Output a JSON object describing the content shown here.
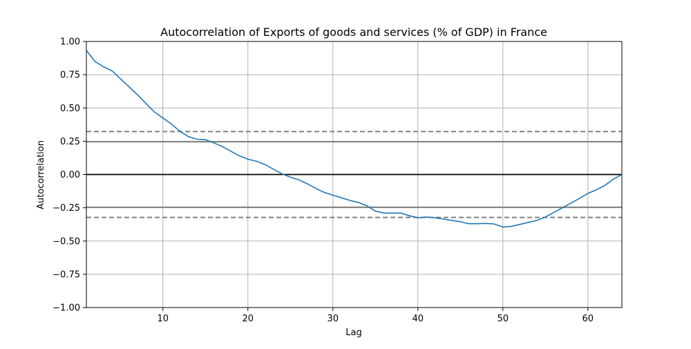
{
  "chart_data": {
    "type": "line",
    "title": "Autocorrelation of Exports of goods and services (% of GDP) in France",
    "xlabel": "Lag",
    "ylabel": "Autocorrelation",
    "xlim": [
      1,
      64
    ],
    "ylim": [
      -1.0,
      1.0
    ],
    "xticks": [
      10,
      20,
      30,
      40,
      50,
      60
    ],
    "xtick_labels": [
      "10",
      "20",
      "30",
      "40",
      "50",
      "60"
    ],
    "yticks": [
      -1.0,
      -0.75,
      -0.5,
      -0.25,
      0.0,
      0.25,
      0.5,
      0.75,
      1.0
    ],
    "ytick_labels": [
      "−1.00",
      "−0.75",
      "−0.50",
      "−0.25",
      "0.00",
      "0.25",
      "0.50",
      "0.75",
      "1.00"
    ],
    "grid": true,
    "confidence_lines": {
      "solid": [
        0.246,
        -0.246
      ],
      "dashed": [
        0.323,
        -0.323
      ]
    },
    "colors": {
      "series": "#1f77b4",
      "confidence": "#808080",
      "grid": "#b0b0b0",
      "zero_line": "#000000"
    },
    "series": [
      {
        "x": [
          1,
          2,
          3,
          4,
          5,
          6,
          7,
          8,
          9,
          10,
          11,
          12,
          13,
          14,
          15,
          16,
          17,
          18,
          19,
          20,
          21,
          22,
          23,
          24,
          25,
          26,
          27,
          28,
          29,
          30,
          31,
          32,
          33,
          34,
          35,
          36,
          37,
          38,
          39,
          40,
          41,
          42,
          43,
          44,
          45,
          46,
          47,
          48,
          49,
          50,
          51,
          52,
          53,
          54,
          55,
          56,
          57,
          58,
          59,
          60,
          61,
          62,
          63,
          64
        ],
        "values": [
          0.933,
          0.85,
          0.81,
          0.78,
          0.72,
          0.66,
          0.6,
          0.535,
          0.47,
          0.425,
          0.38,
          0.325,
          0.285,
          0.265,
          0.262,
          0.238,
          0.21,
          0.175,
          0.14,
          0.115,
          0.1,
          0.075,
          0.04,
          0.005,
          -0.02,
          -0.04,
          -0.07,
          -0.105,
          -0.135,
          -0.155,
          -0.175,
          -0.195,
          -0.21,
          -0.235,
          -0.275,
          -0.29,
          -0.29,
          -0.29,
          -0.31,
          -0.325,
          -0.32,
          -0.325,
          -0.335,
          -0.345,
          -0.355,
          -0.37,
          -0.37,
          -0.368,
          -0.372,
          -0.395,
          -0.39,
          -0.375,
          -0.36,
          -0.345,
          -0.32,
          -0.285,
          -0.25,
          -0.215,
          -0.18,
          -0.142,
          -0.115,
          -0.082,
          -0.035,
          0.0
        ]
      }
    ]
  }
}
